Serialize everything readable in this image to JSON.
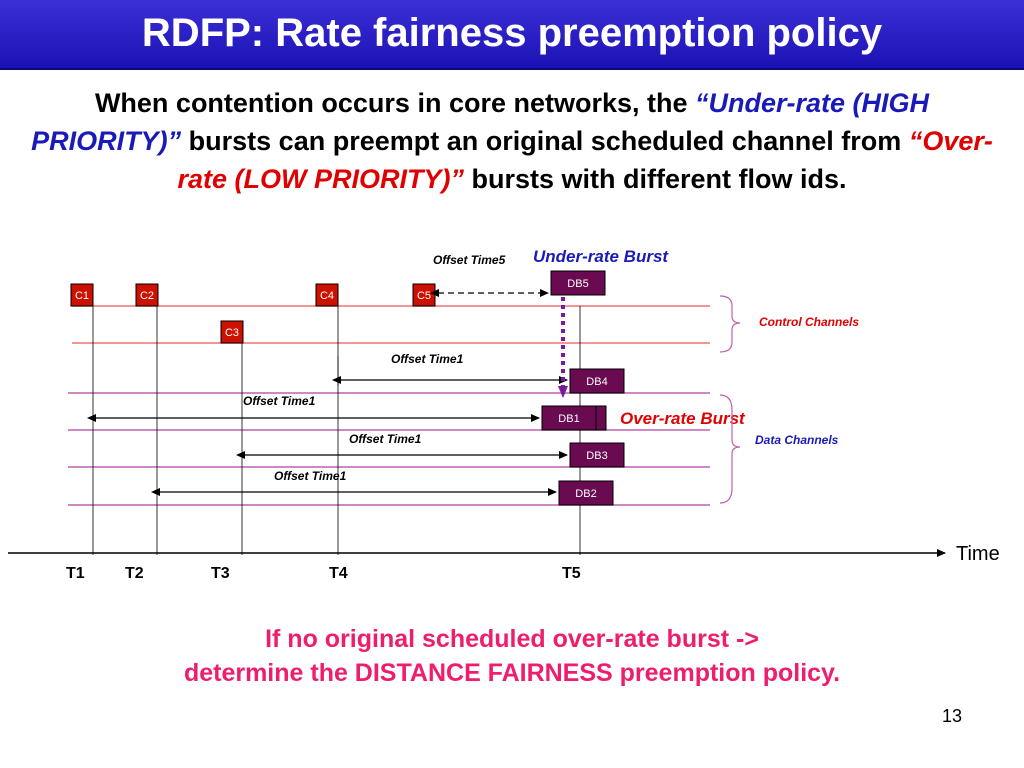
{
  "slide": {
    "title": "RDFP: Rate fairness preemption policy",
    "intro": {
      "p1": "When contention occurs in core networks, the ",
      "q1": "“",
      "high": "Under-rate (HIGH PRIORITY)",
      "q2": "”",
      "p2": " bursts can preempt an original scheduled channel from ",
      "q3": "“",
      "low": "Over-rate (LOW PRIORITY)",
      "q4": "”",
      "p3": " bursts with different flow ids."
    },
    "note_line1": "If no original scheduled over-rate burst ->",
    "note_line2": "determine the DISTANCE FAIRNESS preemption policy.",
    "page_number": "13"
  },
  "diagram": {
    "control_packets": [
      "C1",
      "C2",
      "C3",
      "C4",
      "C5"
    ],
    "data_bursts": [
      "DB5",
      "DB4",
      "DB1",
      "DB3",
      "DB2"
    ],
    "offset_labels": {
      "offset5": "Offset Time5",
      "offset1_a": "Offset Time1",
      "offset1_b": "Offset Time1",
      "offset1_c": "Offset Time1",
      "offset1_d": "Offset Time1"
    },
    "labels": {
      "under_rate": "Under-rate Burst",
      "over_rate": "Over-rate Burst",
      "control_channels": "Control Channels",
      "data_channels": "Data Channels",
      "time": "Time"
    },
    "time_ticks": [
      "T1",
      "T2",
      "T3",
      "T4",
      "T5"
    ],
    "colors": {
      "control_box": "#cc1100",
      "data_box": "#6a0a50",
      "control_line": "#f07070",
      "data_line": "#c060b0",
      "preempt_arrow": "#7a1a9a",
      "under_rate_text": "#1a1ab8",
      "over_rate_text": "#e00000"
    }
  }
}
